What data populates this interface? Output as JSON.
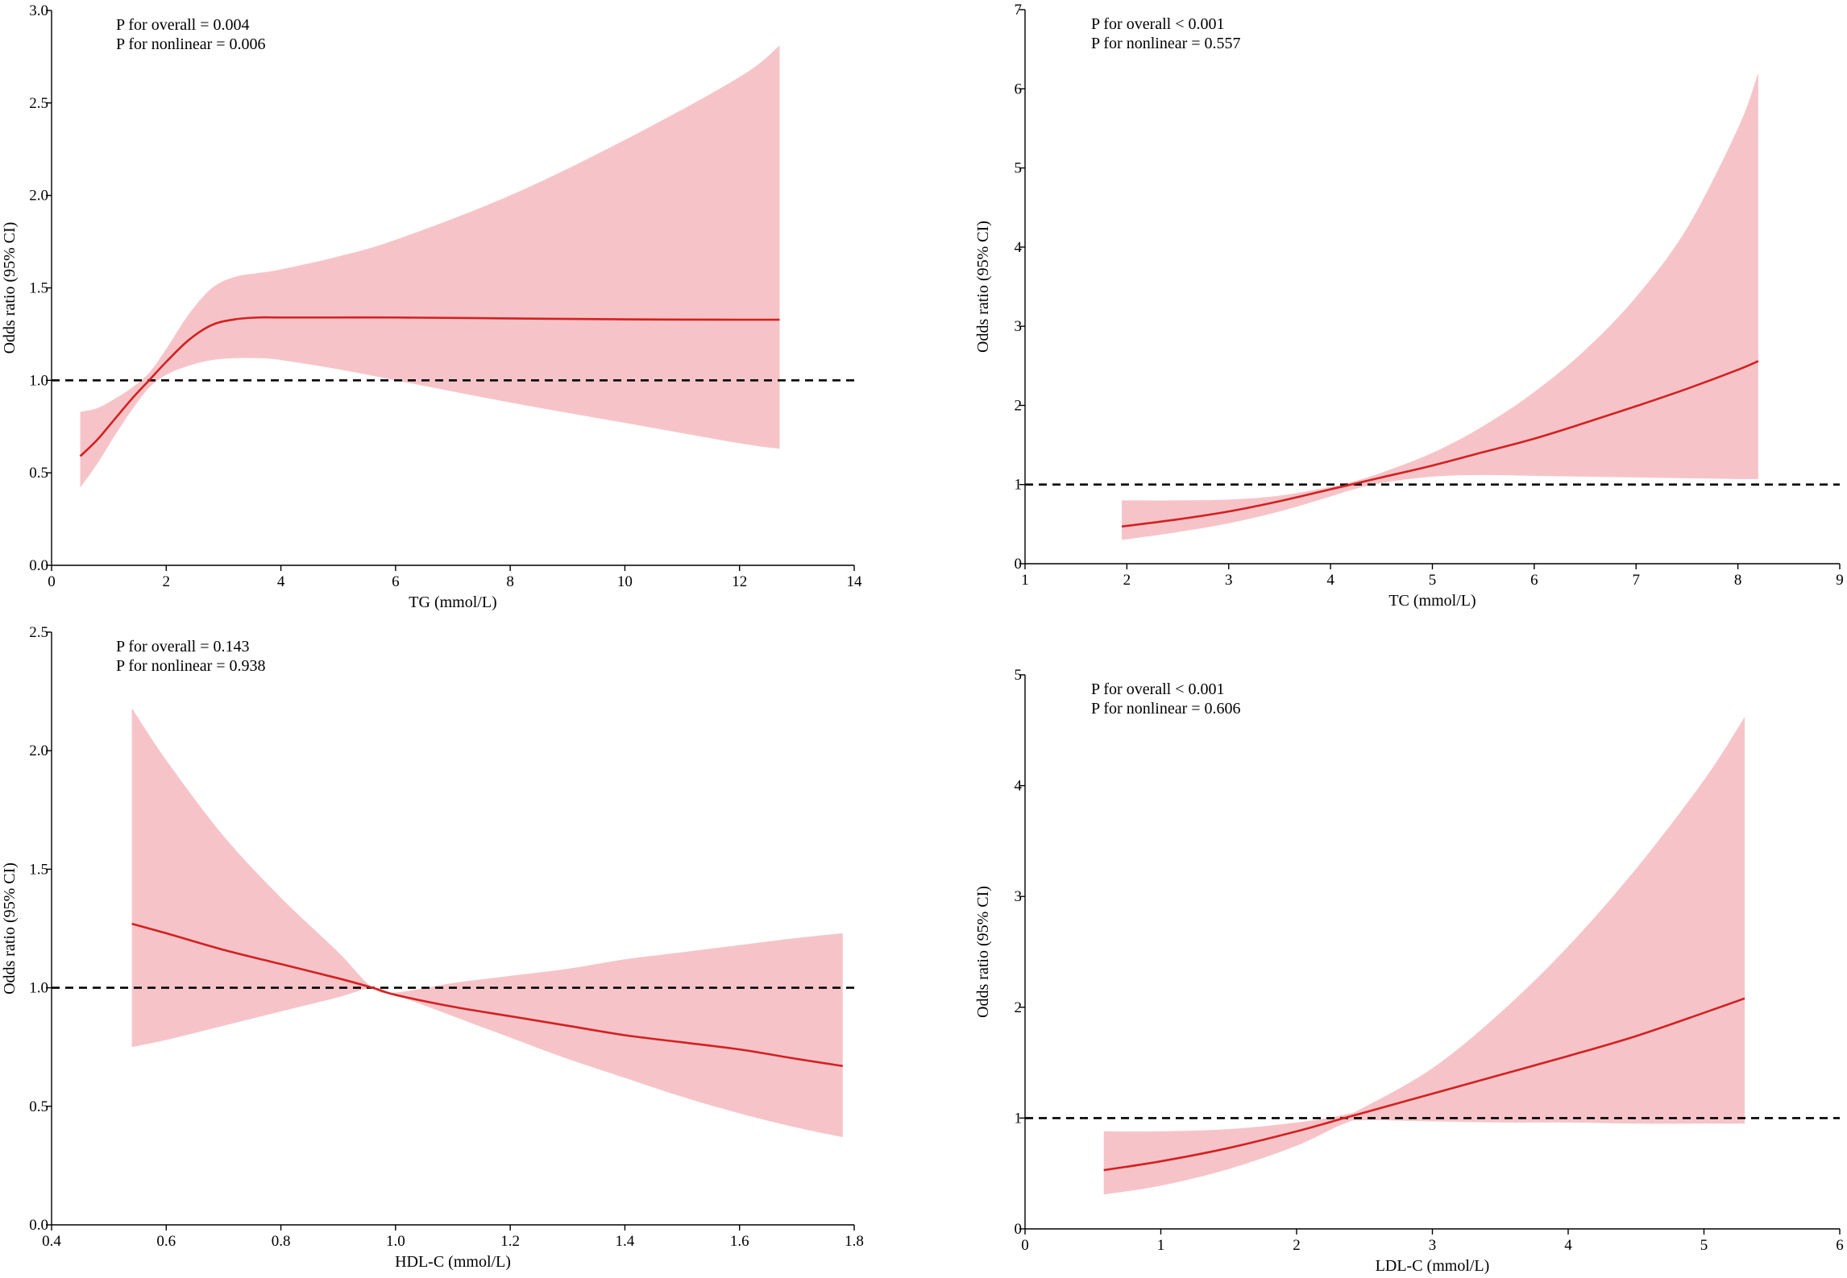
{
  "colors": {
    "line": "#d42020",
    "band": "#f6c4c8",
    "reference": "#000000",
    "axis": "#000000"
  },
  "chart_data": [
    {
      "type": "line",
      "id": "tg",
      "title": "",
      "xlabel": "TG (mmol/L)",
      "ylabel": "Odds ratio (95% CI)",
      "xlim": [
        0,
        14
      ],
      "ylim": [
        0,
        3
      ],
      "xticks": [
        0,
        2,
        4,
        6,
        8,
        10,
        12,
        14
      ],
      "xtick_labels": [
        "0",
        "2",
        "4",
        "6",
        "8",
        "10",
        "12",
        "14"
      ],
      "yticks": [
        0,
        0.5,
        1,
        1.5,
        2,
        2.5,
        3
      ],
      "ytick_labels": [
        "0.0",
        "0.5",
        "1.0",
        "1.5",
        "2.0",
        "2.5",
        "3.0"
      ],
      "reference_line": 1.0,
      "annotations": [
        "P for overall = 0.004",
        "P for nonlinear = 0.006"
      ],
      "series": [
        {
          "name": "Odds ratio",
          "x": [
            0.5,
            0.8,
            1.1,
            1.4,
            1.7,
            2.0,
            2.4,
            2.8,
            3.2,
            3.6,
            4.0,
            5.0,
            6.0,
            8.0,
            10.0,
            12.0,
            12.7
          ],
          "y": [
            0.59,
            0.68,
            0.79,
            0.9,
            1.0,
            1.1,
            1.22,
            1.3,
            1.33,
            1.34,
            1.34,
            1.34,
            1.34,
            1.335,
            1.33,
            1.328,
            1.328
          ],
          "lower": [
            0.42,
            0.55,
            0.7,
            0.84,
            0.96,
            1.03,
            1.08,
            1.11,
            1.12,
            1.12,
            1.11,
            1.06,
            1.0,
            0.88,
            0.77,
            0.66,
            0.63
          ],
          "upper": [
            0.83,
            0.85,
            0.9,
            0.96,
            1.04,
            1.17,
            1.36,
            1.5,
            1.56,
            1.58,
            1.6,
            1.67,
            1.76,
            2.0,
            2.3,
            2.64,
            2.81
          ]
        }
      ]
    },
    {
      "type": "line",
      "id": "tc",
      "title": "",
      "xlabel": "TC (mmol/L)",
      "ylabel": "Odds ratio (95% CI)",
      "xlim": [
        1,
        9
      ],
      "ylim": [
        0,
        7
      ],
      "xticks": [
        1,
        2,
        3,
        4,
        5,
        6,
        7,
        8,
        9
      ],
      "xtick_labels": [
        "1",
        "2",
        "3",
        "4",
        "5",
        "6",
        "7",
        "8",
        "9"
      ],
      "yticks": [
        0,
        1,
        2,
        3,
        4,
        5,
        6,
        7
      ],
      "ytick_labels": [
        "0",
        "1",
        "2",
        "3",
        "4",
        "5",
        "6",
        "7"
      ],
      "reference_line": 1.0,
      "annotations": [
        "P for overall < 0.001",
        "P for nonlinear = 0.557"
      ],
      "series": [
        {
          "name": "Odds ratio",
          "x": [
            1.95,
            2.5,
            3.0,
            3.5,
            4.0,
            4.2,
            4.5,
            5.0,
            5.5,
            6.0,
            6.5,
            7.0,
            7.5,
            8.0,
            8.2
          ],
          "y": [
            0.47,
            0.56,
            0.66,
            0.79,
            0.94,
            1.0,
            1.09,
            1.24,
            1.41,
            1.58,
            1.78,
            1.99,
            2.21,
            2.45,
            2.56
          ],
          "lower": [
            0.3,
            0.4,
            0.51,
            0.66,
            0.85,
            0.93,
            1.02,
            1.1,
            1.12,
            1.11,
            1.1,
            1.09,
            1.08,
            1.07,
            1.07
          ],
          "upper": [
            0.8,
            0.8,
            0.81,
            0.86,
            0.97,
            1.03,
            1.15,
            1.4,
            1.74,
            2.17,
            2.7,
            3.37,
            4.24,
            5.5,
            6.2
          ]
        }
      ]
    },
    {
      "type": "line",
      "id": "hdl",
      "title": "",
      "xlabel": "HDL-C (mmol/L)",
      "ylabel": "Odds ratio (95% CI)",
      "xlim": [
        0.4,
        1.8
      ],
      "ylim": [
        0,
        2.5
      ],
      "xticks": [
        0.4,
        0.6,
        0.8,
        1.0,
        1.2,
        1.4,
        1.6,
        1.8
      ],
      "xtick_labels": [
        "0.4",
        "0.6",
        "0.8",
        "1.0",
        "1.2",
        "1.4",
        "1.6",
        "1.8"
      ],
      "yticks": [
        0,
        0.5,
        1,
        1.5,
        2,
        2.5
      ],
      "ytick_labels": [
        "0.0",
        "0.5",
        "1.0",
        "1.5",
        "2.0",
        "2.5"
      ],
      "reference_line": 1.0,
      "annotations": [
        "P for overall = 0.143",
        "P for nonlinear = 0.938"
      ],
      "series": [
        {
          "name": "Odds ratio",
          "x": [
            0.54,
            0.6,
            0.7,
            0.8,
            0.9,
            0.96,
            1.0,
            1.1,
            1.2,
            1.3,
            1.4,
            1.5,
            1.6,
            1.7,
            1.78
          ],
          "y": [
            1.27,
            1.23,
            1.16,
            1.1,
            1.04,
            1.0,
            0.97,
            0.92,
            0.88,
            0.84,
            0.8,
            0.77,
            0.74,
            0.7,
            0.67
          ],
          "lower": [
            0.75,
            0.78,
            0.84,
            0.9,
            0.96,
            1.0,
            0.97,
            0.88,
            0.79,
            0.7,
            0.62,
            0.54,
            0.47,
            0.41,
            0.37
          ],
          "upper": [
            2.18,
            1.96,
            1.64,
            1.38,
            1.15,
            1.0,
            0.98,
            1.02,
            1.05,
            1.08,
            1.12,
            1.15,
            1.18,
            1.21,
            1.23
          ]
        }
      ]
    },
    {
      "type": "line",
      "id": "ldl",
      "title": "",
      "xlabel": "LDL-C (mmol/L)",
      "ylabel": "Odds ratio (95% CI)",
      "xlim": [
        0,
        6
      ],
      "ylim": [
        0,
        5
      ],
      "xticks": [
        0,
        1,
        2,
        3,
        4,
        5,
        6
      ],
      "xtick_labels": [
        "0",
        "1",
        "2",
        "3",
        "4",
        "5",
        "6"
      ],
      "yticks": [
        0,
        1,
        2,
        3,
        4,
        5
      ],
      "ytick_labels": [
        "0",
        "1",
        "2",
        "3",
        "4",
        "5"
      ],
      "reference_line": 1.0,
      "annotations": [
        "P for overall < 0.001",
        "P for nonlinear = 0.606"
      ],
      "series": [
        {
          "name": "Odds ratio",
          "x": [
            0.58,
            1.0,
            1.5,
            2.0,
            2.35,
            2.5,
            3.0,
            3.5,
            4.0,
            4.5,
            5.0,
            5.3
          ],
          "y": [
            0.53,
            0.61,
            0.73,
            0.88,
            1.0,
            1.05,
            1.22,
            1.39,
            1.56,
            1.74,
            1.95,
            2.08
          ],
          "lower": [
            0.31,
            0.39,
            0.54,
            0.75,
            0.95,
            0.98,
            0.97,
            0.96,
            0.96,
            0.95,
            0.95,
            0.95
          ],
          "upper": [
            0.88,
            0.88,
            0.9,
            0.96,
            1.03,
            1.1,
            1.45,
            1.95,
            2.55,
            3.25,
            4.05,
            4.62
          ]
        }
      ]
    }
  ]
}
